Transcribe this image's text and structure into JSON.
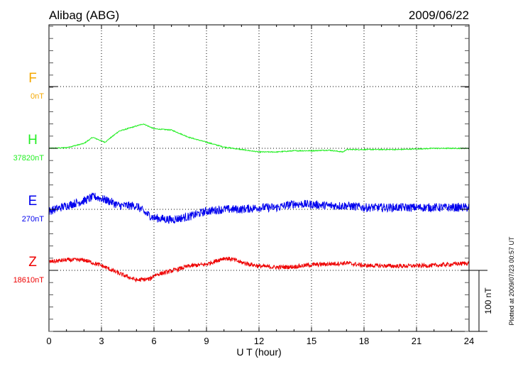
{
  "chart_data": {
    "type": "line",
    "title": "Alibag (ABG)",
    "date": "2009/06/22",
    "xlabel": "U T (hour)",
    "xlim": [
      0,
      24
    ],
    "xticks": [
      0,
      3,
      6,
      9,
      12,
      15,
      18,
      21,
      24
    ],
    "grid": true,
    "scale_bar": {
      "label": "100 nT",
      "value_nT": 100
    },
    "footer": "Plotted at 2009/07/23 00:57 UT",
    "series": [
      {
        "name": "F",
        "baseline_label": "0nT",
        "color": "#f5a800",
        "x": [],
        "values": [],
        "noise_nT": 0
      },
      {
        "name": "H",
        "baseline_label": "37820nT",
        "color": "#22ee22",
        "x": [
          0,
          1,
          2,
          2.5,
          3.2,
          4,
          5.4,
          6,
          7,
          8,
          9,
          10,
          11,
          12,
          13,
          14,
          15,
          16,
          16.8,
          17,
          18,
          20,
          22,
          24
        ],
        "values": [
          0,
          1,
          8,
          18,
          10,
          28,
          40,
          32,
          30,
          18,
          10,
          2,
          -2,
          -6,
          -6,
          -4,
          -4,
          -3,
          -6,
          -2,
          -2,
          -2,
          0,
          0
        ],
        "noise_nT": 0.8
      },
      {
        "name": "E",
        "baseline_label": "270nT",
        "color": "#0000ee",
        "x": [
          0,
          1,
          2,
          2.6,
          3.5,
          4,
          5,
          5.5,
          6,
          7,
          8,
          9,
          10,
          11,
          12,
          13,
          14,
          15,
          16,
          17,
          18,
          20,
          22,
          24
        ],
        "values": [
          -3,
          6,
          14,
          21,
          13,
          6,
          6,
          -6,
          -14,
          -17,
          -12,
          -3,
          0,
          0,
          3,
          3,
          9,
          8,
          6,
          6,
          3,
          3,
          3,
          3
        ],
        "noise_nT": 7
      },
      {
        "name": "Z",
        "baseline_label": "18610nT",
        "color": "#ee0000",
        "x": [
          0,
          1,
          2,
          3,
          4,
          5,
          5.8,
          6,
          7,
          8,
          9,
          10,
          10.5,
          11,
          12,
          13,
          14,
          15,
          17,
          18,
          20,
          22,
          24
        ],
        "values": [
          14,
          17,
          17,
          8,
          -5,
          -16,
          -14,
          -8,
          -1,
          7,
          10,
          20,
          18,
          13,
          7,
          5,
          6,
          9,
          12,
          8,
          7,
          8,
          12
        ],
        "noise_nT": 3.5
      }
    ]
  }
}
